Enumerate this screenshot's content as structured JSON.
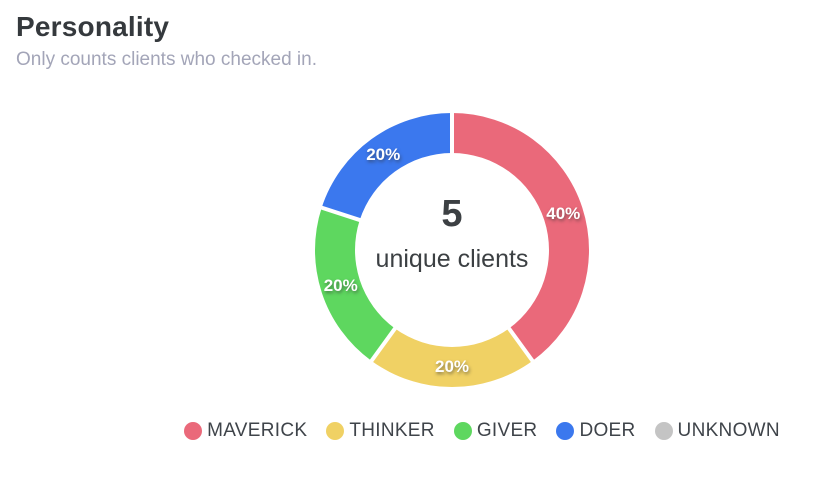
{
  "header": {
    "title": "Personality",
    "subtitle": "Only counts clients who checked in."
  },
  "chart_data": {
    "type": "pie",
    "variant": "donut",
    "title": "Personality",
    "categories": [
      "MAVERICK",
      "THINKER",
      "GIVER",
      "DOER",
      "UNKNOWN"
    ],
    "values": [
      40,
      20,
      20,
      20,
      0
    ],
    "unit": "%",
    "slice_labels": [
      "40%",
      "20%",
      "20%",
      "20%"
    ],
    "colors": [
      "#ea697a",
      "#f0d164",
      "#5ed75f",
      "#3b78ee",
      "#c4c4c4"
    ],
    "center": {
      "value": "5",
      "label": "unique clients"
    },
    "start_angle_deg": 0,
    "direction": "clockwise",
    "legend_position": "bottom"
  },
  "colors": {
    "background": "#ffffff",
    "title_text": "#35393d",
    "subtitle_text": "#a3a5b8",
    "center_text": "#3c4043",
    "legend_text": "#3f444a",
    "slice_label_text": "#ffffff",
    "segment_gap": "#ffffff"
  }
}
